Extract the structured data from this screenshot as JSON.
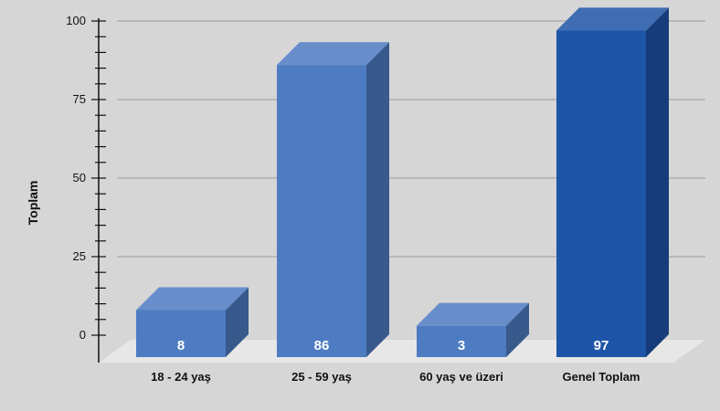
{
  "chart_data": {
    "type": "bar",
    "ylabel": "Toplam",
    "ylim": [
      0,
      100
    ],
    "yticks": [
      0,
      25,
      50,
      75,
      100
    ],
    "grid": true,
    "categories": [
      "18 - 24 yaş",
      "25 - 59 yaş",
      "60 yaş ve üzeri",
      "Genel Toplam"
    ],
    "values": [
      8,
      86,
      3,
      97
    ],
    "data_labels": [
      "8",
      "86",
      "3",
      "97"
    ],
    "colors": {
      "background": "#d6d6d6",
      "bar": "#4e7cc2",
      "total_bar": "#1f55a8",
      "floor": "#e6e7e6",
      "gridline": "#9a9a9a",
      "axis": "#111111",
      "text": "#111111",
      "value_label": "#ffffff"
    }
  }
}
